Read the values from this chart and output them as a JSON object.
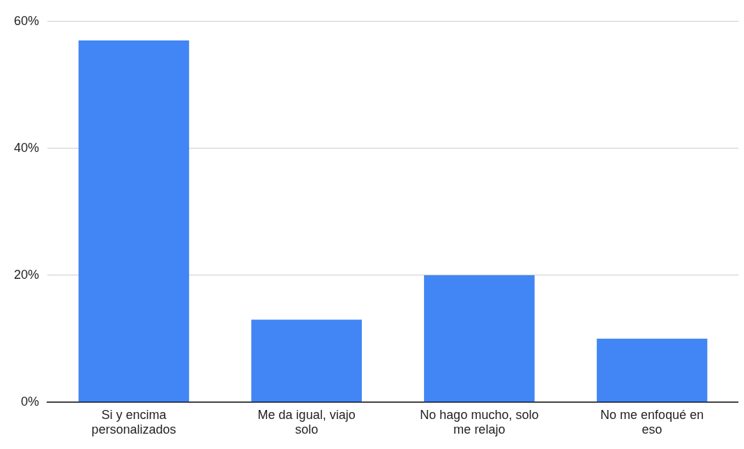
{
  "chart_data": {
    "type": "bar",
    "categories": [
      "Si y encima personalizados",
      "Me da igual, viajo solo",
      "No hago mucho, solo me relajo",
      "No me enfoqué en eso"
    ],
    "values": [
      57,
      13,
      20,
      10
    ],
    "color": "#4285f4",
    "ylim": [
      0,
      60
    ],
    "yticks": [
      {
        "value": 0,
        "label": "0%"
      },
      {
        "value": 20,
        "label": "20%"
      },
      {
        "value": 40,
        "label": "40%"
      },
      {
        "value": 60,
        "label": "60%"
      }
    ],
    "grid": "y",
    "legend": false
  }
}
